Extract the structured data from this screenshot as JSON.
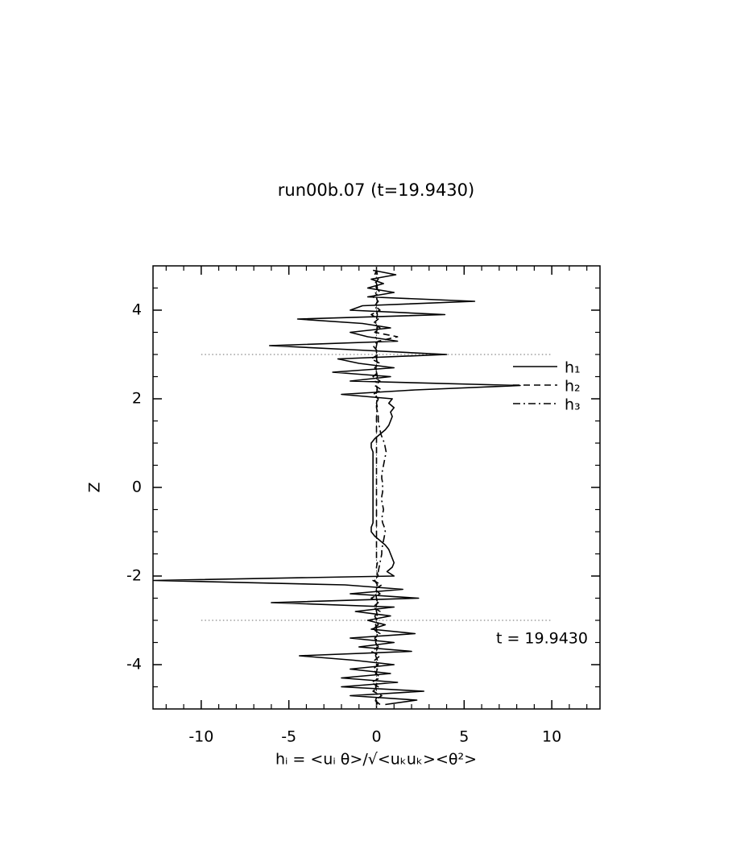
{
  "chart_data": {
    "type": "line",
    "title": "run00b.07 (t=19.9430)",
    "xlabel": "hᵢ = <uᵢ θ>/√<uₖuₖ><θ²>",
    "ylabel": "Z",
    "annotation": "t = 19.9430",
    "legend": "upper right",
    "xlim": [
      -12.75,
      12.75
    ],
    "ylim": [
      -5,
      5
    ],
    "xticks": [
      -10,
      -5,
      0,
      5,
      10
    ],
    "yticks": [
      -4,
      -2,
      0,
      2,
      4
    ],
    "xminorticks": [
      -12,
      -11,
      -9,
      -8,
      -7,
      -6,
      -4,
      -3,
      -2,
      -1,
      1,
      2,
      3,
      4,
      6,
      7,
      8,
      9,
      11,
      12
    ],
    "yminorticks": [
      -4.5,
      -3.5,
      -3,
      -2.5,
      -1.5,
      -1,
      -0.5,
      0.5,
      1,
      1.5,
      2.5,
      3,
      3.5,
      4.5
    ],
    "hlines": [
      {
        "y": 3,
        "xmin": -10,
        "xmax": 10
      },
      {
        "y": -3,
        "xmin": -10,
        "xmax": 10
      }
    ],
    "vline": 0,
    "y": [
      -4.9,
      -4.8,
      -4.7,
      -4.6,
      -4.5,
      -4.4,
      -4.3,
      -4.2,
      -4.1,
      -4.0,
      -3.9,
      -3.8,
      -3.7,
      -3.6,
      -3.5,
      -3.4,
      -3.3,
      -3.2,
      -3.1,
      -3.0,
      -2.9,
      -2.8,
      -2.7,
      -2.6,
      -2.5,
      -2.4,
      -2.3,
      -2.2,
      -2.1,
      -2.0,
      -1.9,
      -1.8,
      -1.7,
      -1.6,
      -1.5,
      -1.4,
      -1.3,
      -1.2,
      -1.1,
      -1.0,
      -0.9,
      -0.8,
      -0.7,
      -0.6,
      -0.5,
      -0.4,
      -0.3,
      -0.2,
      -0.1,
      0.0,
      0.1,
      0.2,
      0.3,
      0.4,
      0.5,
      0.6,
      0.7,
      0.8,
      0.9,
      1.0,
      1.1,
      1.2,
      1.3,
      1.4,
      1.5,
      1.6,
      1.7,
      1.8,
      1.9,
      2.0,
      2.1,
      2.2,
      2.3,
      2.4,
      2.5,
      2.6,
      2.7,
      2.8,
      2.9,
      3.0,
      3.1,
      3.2,
      3.3,
      3.4,
      3.5,
      3.6,
      3.7,
      3.8,
      3.9,
      4.0,
      4.1,
      4.2,
      4.3,
      4.4,
      4.5,
      4.6,
      4.7,
      4.8,
      4.9
    ],
    "series": [
      {
        "name": "h₁",
        "color": "#000000",
        "style": "solid",
        "values": [
          0.5,
          2.3,
          -1.5,
          2.7,
          -2.0,
          1.2,
          -2.0,
          0.8,
          -1.5,
          1.0,
          -1.3,
          -4.4,
          2.0,
          -1.0,
          1.0,
          -1.5,
          2.2,
          -0.3,
          0.5,
          -0.5,
          0.8,
          -1.2,
          1.0,
          -6.0,
          2.4,
          -1.5,
          1.5,
          -1.8,
          -12.7,
          1.0,
          0.6,
          0.9,
          1.0,
          0.9,
          0.8,
          0.7,
          0.5,
          0.2,
          -0.1,
          -0.3,
          -0.3,
          -0.2,
          -0.2,
          -0.2,
          -0.2,
          -0.2,
          -0.2,
          -0.2,
          -0.2,
          -0.2,
          -0.2,
          -0.2,
          -0.2,
          -0.2,
          -0.2,
          -0.2,
          -0.2,
          -0.2,
          -0.3,
          -0.3,
          -0.1,
          0.2,
          0.5,
          0.7,
          0.8,
          0.9,
          0.8,
          1.0,
          0.7,
          0.9,
          -2.0,
          2.2,
          8.2,
          -1.5,
          0.8,
          -2.5,
          1.0,
          -1.0,
          -2.2,
          4.0,
          -1.0,
          -6.1,
          1.2,
          -0.5,
          -1.5,
          0.8,
          -0.8,
          -4.5,
          3.9,
          -1.5,
          -0.8,
          5.6,
          -0.5,
          1.0,
          -0.5,
          0.4,
          -0.3,
          1.1,
          -0.2
        ]
      },
      {
        "name": "h₂",
        "color": "#000000",
        "style": "dashed",
        "values": [
          0.2,
          -0.1,
          0.3,
          -0.2,
          0.1,
          -0.3,
          0.2,
          0,
          -0.2,
          0.1,
          -0.1,
          0.2,
          -0.3,
          0.1,
          0,
          -0.1,
          0.2,
          -0.2,
          0.1,
          0,
          -0.1,
          0.2,
          -0.2,
          0.1,
          -0.3,
          0.2,
          -0.1,
          0.3,
          -0.2,
          0.1,
          0,
          0,
          0.05,
          0,
          0,
          0,
          0,
          0,
          0,
          0,
          0,
          0,
          0,
          0,
          0,
          0,
          0,
          0,
          0,
          0,
          0,
          0,
          0,
          0,
          0,
          0,
          0,
          0,
          0,
          0,
          0,
          0,
          0,
          0,
          0,
          0,
          0.05,
          0,
          0,
          0.1,
          -0.2,
          0.3,
          -0.1,
          0.2,
          -0.2,
          0.1,
          -0.1,
          0.2,
          -0.3,
          0.1,
          0,
          -0.2,
          0.1,
          1.2,
          -0.1,
          0.2,
          -0.2,
          0.1,
          -0.3,
          0.2,
          -0.1,
          0.1,
          -0.2,
          0.2,
          0,
          -0.1,
          0.1,
          -0.1,
          0
        ]
      },
      {
        "name": "h₃",
        "color": "#000000",
        "style": "dashdot",
        "values": [
          0.05,
          -0.05,
          0.05,
          0,
          -0.05,
          0.05,
          0,
          -0.05,
          0.05,
          0,
          0.05,
          -0.05,
          0,
          0.05,
          -0.05,
          0,
          0.05,
          0,
          -0.05,
          0,
          0.05,
          0,
          -0.05,
          0.05,
          0,
          -0.05,
          0,
          0.05,
          -0.1,
          0.05,
          0.1,
          0.15,
          0.2,
          0.25,
          0.3,
          0.3,
          0.35,
          0.4,
          0.45,
          0.5,
          0.45,
          0.35,
          0.3,
          0.35,
          0.4,
          0.35,
          0.3,
          0.3,
          0.35,
          0.35,
          0.35,
          0.3,
          0.3,
          0.35,
          0.4,
          0.45,
          0.5,
          0.55,
          0.5,
          0.45,
          0.35,
          0.25,
          0.2,
          0.15,
          0.1,
          0.1,
          0.05,
          0.05,
          0,
          0.05,
          -0.05,
          0.05,
          0,
          -0.05,
          0.05,
          0,
          -0.05,
          0.05,
          0,
          0.05,
          -0.05,
          0,
          0.05,
          -0.05,
          0,
          0.05,
          -0.05,
          0,
          0.05,
          0,
          -0.05,
          0.05,
          0,
          -0.05,
          0.05,
          0,
          -0.05,
          0.05,
          0
        ]
      }
    ]
  }
}
